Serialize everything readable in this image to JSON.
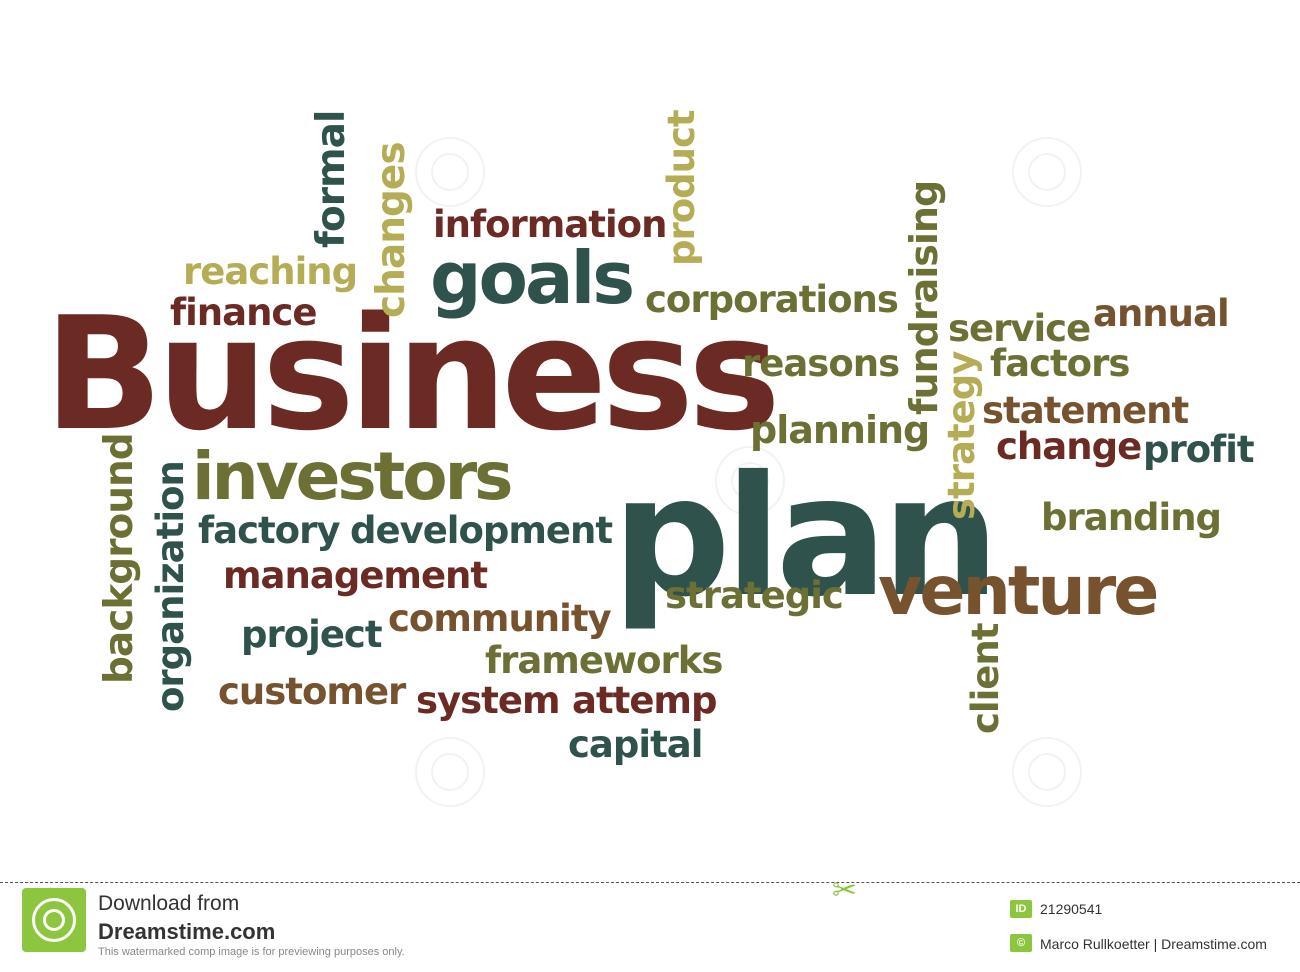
{
  "words": [
    {
      "text": "Business",
      "color": "#6b2a24"
    },
    {
      "text": "plan",
      "color": "#2f524d"
    },
    {
      "text": "investors",
      "color": "#6d7034"
    },
    {
      "text": "goals",
      "color": "#2f524d"
    },
    {
      "text": "venture",
      "color": "#77522e"
    },
    {
      "text": "information",
      "color": "#6b2a24"
    },
    {
      "text": "reaching",
      "color": "#b5ad55"
    },
    {
      "text": "finance",
      "color": "#6b2a24"
    },
    {
      "text": "corporations",
      "color": "#6d7034"
    },
    {
      "text": "reasons",
      "color": "#6d7034"
    },
    {
      "text": "planning",
      "color": "#6d7034"
    },
    {
      "text": "service",
      "color": "#6d7034"
    },
    {
      "text": "annual",
      "color": "#77522e"
    },
    {
      "text": "factors",
      "color": "#6d7034"
    },
    {
      "text": "statement",
      "color": "#77522e"
    },
    {
      "text": "change",
      "color": "#6b2a24"
    },
    {
      "text": "profit",
      "color": "#2f524d"
    },
    {
      "text": "branding",
      "color": "#6d7034"
    },
    {
      "text": "factory",
      "color": "#2f524d"
    },
    {
      "text": "development",
      "color": "#2f524d"
    },
    {
      "text": "management",
      "color": "#6b2a24"
    },
    {
      "text": "strategic",
      "color": "#6d7034"
    },
    {
      "text": "community",
      "color": "#77522e"
    },
    {
      "text": "project",
      "color": "#2f524d"
    },
    {
      "text": "frameworks",
      "color": "#6d7034"
    },
    {
      "text": "customer",
      "color": "#77522e"
    },
    {
      "text": "system",
      "color": "#6b2a24"
    },
    {
      "text": "attemp",
      "color": "#6b2a24"
    },
    {
      "text": "capital",
      "color": "#2f524d"
    },
    {
      "text": "formal",
      "color": "#2f524d"
    },
    {
      "text": "changes",
      "color": "#b5ad55"
    },
    {
      "text": "product",
      "color": "#b5ad55"
    },
    {
      "text": "fundraising",
      "color": "#6d7034"
    },
    {
      "text": "strategy",
      "color": "#b5ad55"
    },
    {
      "text": "background",
      "color": "#6d7034"
    },
    {
      "text": "organization",
      "color": "#2f524d"
    },
    {
      "text": "client",
      "color": "#6d7034"
    }
  ],
  "footer": {
    "download_label": "Download from",
    "brand": "Dreamstime.com",
    "disclaimer": "This watermarked comp image is for previewing purposes only.",
    "id_badge": "ID",
    "image_id": "21290541",
    "copyright_badge": "©",
    "credit": "Marco Rullkoetter | Dreamstime.com"
  },
  "colors": {
    "brand_green": "#8cc63f"
  },
  "icons": [
    "spiral-logo-icon",
    "scissors-icon",
    "id-badge-icon",
    "copyright-icon"
  ]
}
